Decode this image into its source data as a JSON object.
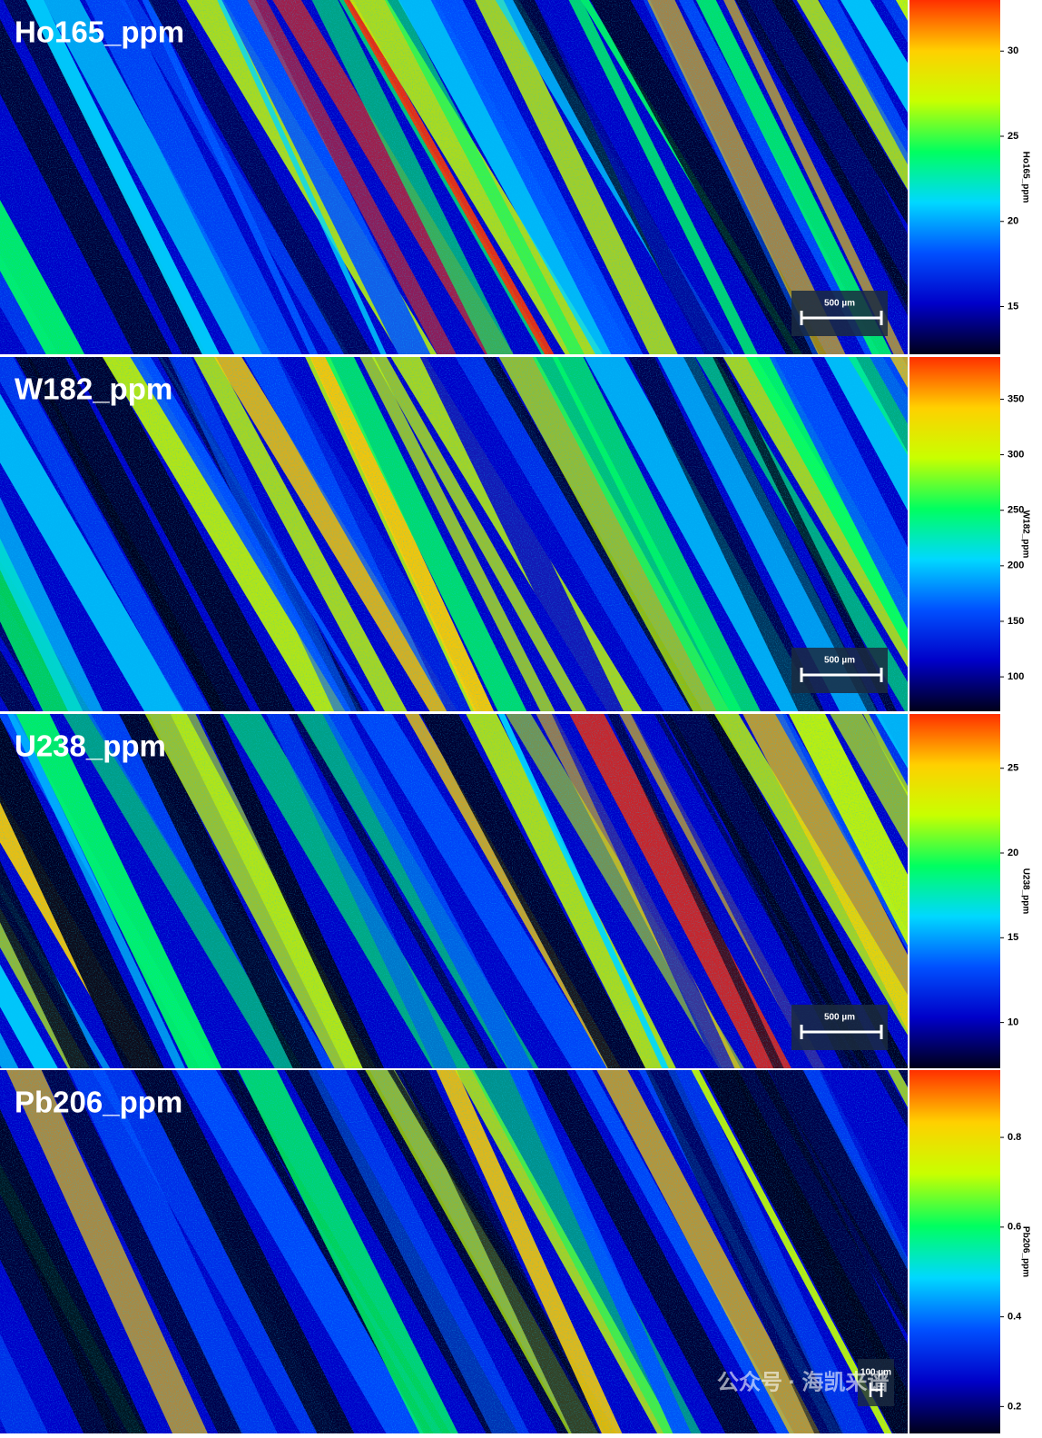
{
  "chart_data": [
    {
      "type": "image-map",
      "title": "Ho165_ppm",
      "colorbar_label": "Ho165_ppm",
      "scale_bar": "500 µm",
      "ylim": [
        12.2,
        33
      ],
      "yticks": [
        15,
        20,
        25,
        30
      ],
      "colormap": [
        "#00001a",
        "#0000c8",
        "#0050ff",
        "#00d8ff",
        "#00ff60",
        "#c8ff00",
        "#ffd000",
        "#ff3000"
      ]
    },
    {
      "type": "image-map",
      "title": "W182_ppm",
      "colorbar_label": "W182_ppm",
      "scale_bar": "500 µm",
      "ylim": [
        69,
        388
      ],
      "yticks": [
        100,
        150,
        200,
        250,
        300,
        350
      ],
      "colormap": [
        "#00001a",
        "#0000c8",
        "#0050ff",
        "#00d8ff",
        "#00ff60",
        "#c8ff00",
        "#ffd000",
        "#ff3000"
      ]
    },
    {
      "type": "image-map",
      "title": "U238_ppm",
      "colorbar_label": "U238_ppm",
      "scale_bar": "500 µm",
      "ylim": [
        7.3,
        28.2
      ],
      "yticks": [
        10,
        15,
        20,
        25
      ],
      "colormap": [
        "#00001a",
        "#0000c8",
        "#0050ff",
        "#00d8ff",
        "#00ff60",
        "#c8ff00",
        "#ffd000",
        "#ff3000"
      ]
    },
    {
      "type": "image-map",
      "title": "Pb206_ppm",
      "colorbar_label": "Pb206_ppm",
      "scale_bar": "100 µm",
      "ylim": [
        0.14,
        0.95
      ],
      "yticks": [
        0.2,
        0.4,
        0.6,
        0.8
      ],
      "colormap": [
        "#00001a",
        "#0000c8",
        "#0050ff",
        "#00d8ff",
        "#00ff60",
        "#c8ff00",
        "#ffd000",
        "#ff3000"
      ],
      "watermark": "公众号 · 海凯来谱"
    }
  ]
}
